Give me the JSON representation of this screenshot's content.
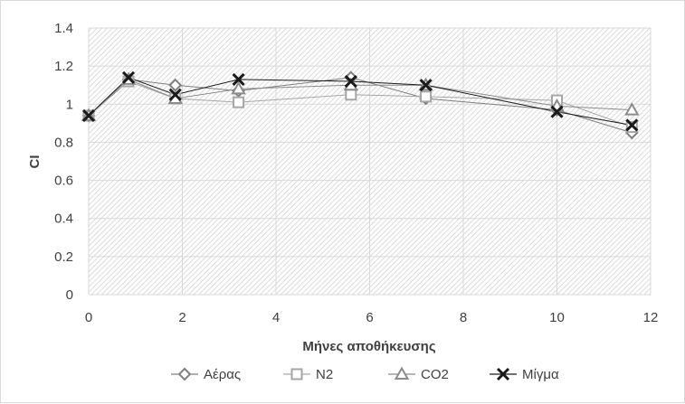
{
  "chart_data": {
    "type": "scatter",
    "title": "",
    "xlabel": "Μήνες αποθήκευσης",
    "ylabel": "CI",
    "xlim": [
      0,
      12
    ],
    "ylim": [
      0,
      1.4
    ],
    "xticks": [
      "0",
      "2",
      "4",
      "6",
      "8",
      "10",
      "12"
    ],
    "yticks": [
      "0",
      "0.2",
      "0.4",
      "0.6",
      "0.8",
      "1",
      "1.2",
      "1.4"
    ],
    "grid": true,
    "legend_position": "bottom",
    "series": [
      {
        "name": "Αέρας",
        "marker": "diamond",
        "color": "#7f7f7f",
        "x": [
          0,
          0.85,
          1.85,
          3.2,
          5.6,
          7.2,
          10,
          11.6
        ],
        "y": [
          0.94,
          1.13,
          1.1,
          1.07,
          1.14,
          1.03,
          0.97,
          0.85
        ]
      },
      {
        "name": "N2",
        "marker": "square",
        "color": "#a6a6a6",
        "x": [
          0,
          0.85,
          1.85,
          3.2,
          5.6,
          7.2,
          10,
          11.6
        ],
        "y": [
          0.94,
          1.12,
          1.03,
          1.01,
          1.05,
          1.04,
          1.02,
          0.88
        ]
      },
      {
        "name": "CO2",
        "marker": "triangle",
        "color": "#8c8c8c",
        "x": [
          0,
          0.85,
          1.85,
          3.2,
          5.6,
          7.2,
          10,
          11.6
        ],
        "y": [
          0.94,
          1.13,
          1.03,
          1.08,
          1.1,
          1.1,
          0.99,
          0.97
        ]
      },
      {
        "name": "Μίγμα",
        "marker": "x",
        "color": "#1a1a1a",
        "x": [
          0,
          0.85,
          1.85,
          3.2,
          5.6,
          7.2,
          10,
          11.6
        ],
        "y": [
          0.94,
          1.14,
          1.05,
          1.13,
          1.12,
          1.1,
          0.96,
          0.89
        ]
      }
    ]
  }
}
